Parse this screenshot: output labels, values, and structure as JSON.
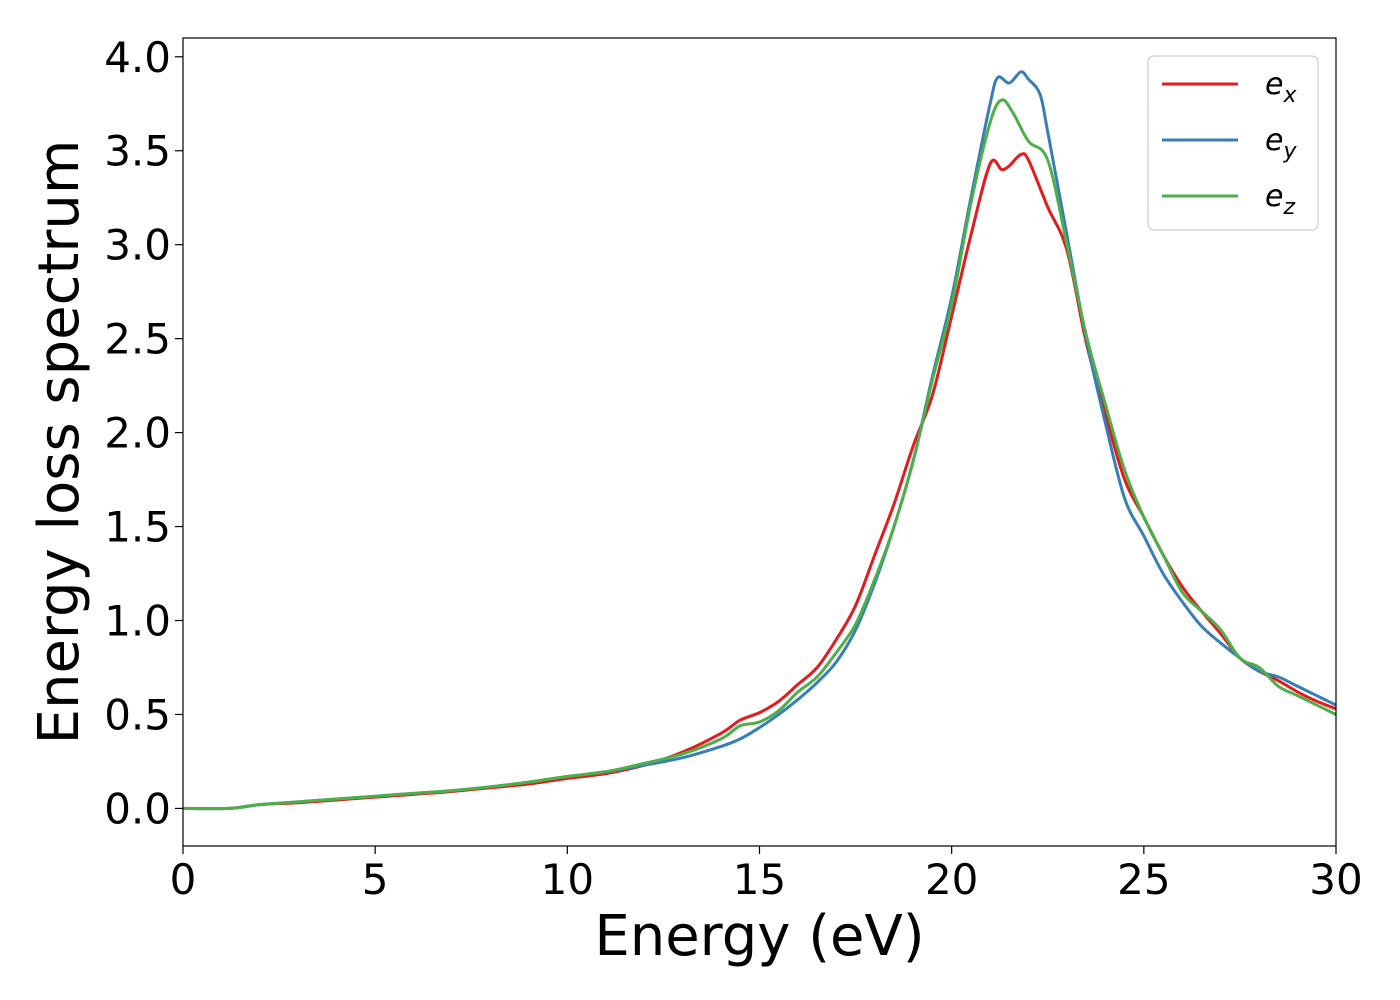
{
  "chart_data": {
    "type": "line",
    "xlabel": "Energy (eV)",
    "ylabel": "Energy loss spectrum",
    "xlim": [
      0,
      30
    ],
    "ylim": [
      -0.2,
      4.1
    ],
    "xticks": [
      0,
      5,
      10,
      15,
      20,
      25,
      30
    ],
    "xtick_labels": [
      "0",
      "5",
      "10",
      "15",
      "20",
      "25",
      "30"
    ],
    "yticks": [
      0.0,
      0.5,
      1.0,
      1.5,
      2.0,
      2.5,
      3.0,
      3.5,
      4.0
    ],
    "ytick_labels": [
      "0.0",
      "0.5",
      "1.0",
      "1.5",
      "2.0",
      "2.5",
      "3.0",
      "3.5",
      "4.0"
    ],
    "grid": false,
    "legend_position": "top-right",
    "series": [
      {
        "name": "e",
        "subscript": "x",
        "color": "#e41a1c",
        "x": [
          0,
          1.2,
          2,
          3,
          4,
          5,
          6,
          7,
          8,
          9,
          10,
          11,
          12,
          13,
          14,
          14.5,
          15,
          15.5,
          16,
          16.5,
          17,
          17.5,
          18,
          18.5,
          19,
          19.5,
          20,
          20.5,
          21,
          21.3,
          21.5,
          21.8,
          22,
          22.5,
          23,
          23.5,
          24,
          24.5,
          25,
          25.5,
          26,
          26.5,
          27,
          27.5,
          28,
          28.5,
          29,
          29.5,
          30
        ],
        "y": [
          0.0,
          0.0,
          0.02,
          0.03,
          0.045,
          0.06,
          0.075,
          0.09,
          0.11,
          0.13,
          0.16,
          0.185,
          0.23,
          0.3,
          0.4,
          0.47,
          0.51,
          0.57,
          0.66,
          0.75,
          0.9,
          1.08,
          1.35,
          1.62,
          1.93,
          2.2,
          2.62,
          3.05,
          3.43,
          3.4,
          3.42,
          3.48,
          3.45,
          3.2,
          2.97,
          2.48,
          2.1,
          1.75,
          1.55,
          1.35,
          1.18,
          1.05,
          0.93,
          0.8,
          0.73,
          0.68,
          0.62,
          0.57,
          0.53
        ]
      },
      {
        "name": "e",
        "subscript": "y",
        "color": "#377eb8",
        "x": [
          0,
          1.2,
          2,
          3,
          4,
          5,
          6,
          7,
          8,
          9,
          10,
          11,
          12,
          13,
          14,
          14.5,
          15,
          15.5,
          16,
          16.5,
          17,
          17.5,
          18,
          18.5,
          19,
          19.5,
          20,
          20.5,
          21,
          21.2,
          21.5,
          21.8,
          22,
          22.3,
          22.5,
          23,
          23.5,
          24,
          24.5,
          25,
          25.5,
          26,
          26.5,
          27,
          27.5,
          28,
          28.5,
          29,
          29.5,
          30
        ],
        "y": [
          0.0,
          0.0,
          0.02,
          0.035,
          0.05,
          0.065,
          0.08,
          0.095,
          0.115,
          0.14,
          0.17,
          0.195,
          0.23,
          0.27,
          0.33,
          0.37,
          0.43,
          0.5,
          0.58,
          0.67,
          0.78,
          0.95,
          1.2,
          1.5,
          1.85,
          2.3,
          2.72,
          3.25,
          3.75,
          3.89,
          3.86,
          3.92,
          3.88,
          3.8,
          3.6,
          3.05,
          2.5,
          2.05,
          1.65,
          1.45,
          1.25,
          1.1,
          0.97,
          0.88,
          0.8,
          0.73,
          0.7,
          0.65,
          0.6,
          0.55
        ]
      },
      {
        "name": "e",
        "subscript": "z",
        "color": "#4daf4a",
        "x": [
          0,
          1.2,
          2,
          3,
          4,
          5,
          6,
          7,
          8,
          9,
          10,
          11,
          12,
          13,
          14,
          14.5,
          15,
          15.5,
          16,
          16.5,
          17,
          17.5,
          18,
          18.5,
          19,
          19.5,
          20,
          20.5,
          21,
          21.3,
          21.6,
          22,
          22.5,
          23,
          23.5,
          24,
          24.5,
          25,
          25.5,
          26,
          26.5,
          27,
          27.5,
          28,
          28.5,
          29,
          29.5,
          30
        ],
        "y": [
          0.0,
          0.0,
          0.02,
          0.035,
          0.05,
          0.065,
          0.08,
          0.095,
          0.115,
          0.14,
          0.17,
          0.195,
          0.24,
          0.29,
          0.37,
          0.44,
          0.46,
          0.52,
          0.62,
          0.7,
          0.83,
          0.98,
          1.22,
          1.5,
          1.85,
          2.28,
          2.68,
          3.22,
          3.65,
          3.77,
          3.7,
          3.55,
          3.45,
          3.0,
          2.52,
          2.15,
          1.8,
          1.55,
          1.35,
          1.15,
          1.05,
          0.95,
          0.8,
          0.75,
          0.65,
          0.6,
          0.55,
          0.5
        ]
      }
    ]
  }
}
